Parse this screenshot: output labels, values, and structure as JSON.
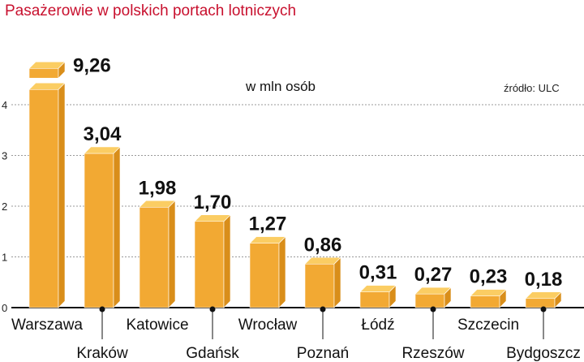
{
  "chart_data": {
    "type": "bar",
    "title": "Pasażerowie w polskich portach lotniczych",
    "unit_label": "w mln osób",
    "source": "źródło: ULC",
    "categories": [
      "Warszawa",
      "Kraków",
      "Katowice",
      "Gdańsk",
      "Wrocław",
      "Poznań",
      "Łódź",
      "Rzeszów",
      "Szczecin",
      "Bydgoszcz"
    ],
    "values": [
      9.26,
      3.04,
      1.98,
      1.7,
      1.27,
      0.86,
      0.31,
      0.27,
      0.23,
      0.18
    ],
    "value_labels": [
      "9,26",
      "3,04",
      "1,98",
      "1,70",
      "1,27",
      "0,86",
      "0,31",
      "0,27",
      "0,23",
      "0,18"
    ],
    "yticks": [
      "0",
      "1",
      "2",
      "3",
      "4"
    ],
    "ylim": [
      0,
      4
    ],
    "axis_break": "top of Warszawa bar truncated",
    "grid": true,
    "colors": {
      "title": "#c8102e",
      "bar_front": "#f2a933",
      "bar_side": "#d98e1a",
      "bar_top": "#fbcd63",
      "grid": "#9a9a9a"
    }
  }
}
